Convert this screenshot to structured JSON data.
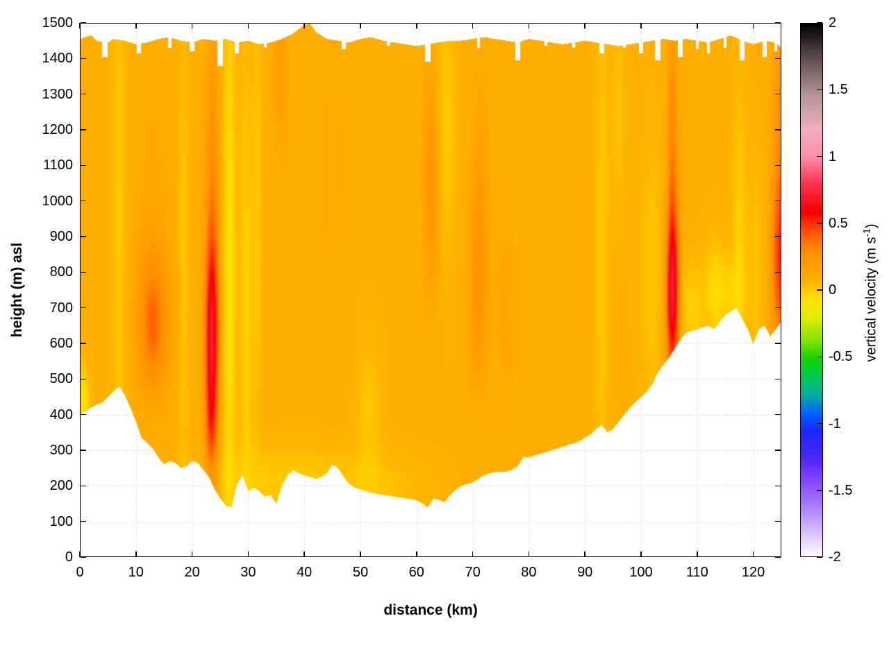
{
  "figure": {
    "background": "#ffffff"
  },
  "chart_data": {
    "type": "heatmap",
    "title": "",
    "xlabel": "distance (km)",
    "ylabel": "height (m) asl",
    "xlim": [
      0,
      125
    ],
    "ylim": [
      0,
      1500
    ],
    "xticks": [
      0,
      10,
      20,
      30,
      40,
      50,
      60,
      70,
      80,
      90,
      100,
      110,
      120
    ],
    "yticks": [
      0,
      100,
      200,
      300,
      400,
      500,
      600,
      700,
      800,
      900,
      1000,
      1100,
      1200,
      1300,
      1400,
      1500
    ],
    "grid": {
      "style": "dotted",
      "color": "#b8b8b8"
    },
    "colorbar": {
      "label_main": "vertical velocity (m s",
      "label_sup": "-1",
      "label_close": ")",
      "range": [
        -2,
        2
      ],
      "ticks": [
        -2,
        -1.5,
        -1,
        -0.5,
        0,
        0.5,
        1,
        1.5,
        2
      ],
      "tick_labels": [
        "-2",
        "-1.5",
        "-1",
        "-0.5",
        "0",
        "0.5",
        "1",
        "1.5",
        "2"
      ],
      "stops": [
        [
          -2.0,
          "#ffffff"
        ],
        [
          -1.85,
          "#e3ccff"
        ],
        [
          -1.65,
          "#b388ff"
        ],
        [
          -1.45,
          "#8a4cff"
        ],
        [
          -1.25,
          "#4c24f5"
        ],
        [
          -1.05,
          "#1a2aff"
        ],
        [
          -0.92,
          "#0066ff"
        ],
        [
          -0.78,
          "#00b09a"
        ],
        [
          -0.62,
          "#00cc44"
        ],
        [
          -0.52,
          "#14d200"
        ],
        [
          -0.38,
          "#7fe400"
        ],
        [
          -0.22,
          "#d8ef00"
        ],
        [
          -0.08,
          "#ffe400"
        ],
        [
          0.08,
          "#ffb000"
        ],
        [
          0.3,
          "#ff8c00"
        ],
        [
          0.45,
          "#ff4d00"
        ],
        [
          0.58,
          "#f50000"
        ],
        [
          0.8,
          "#ff3355"
        ],
        [
          1.0,
          "#ff90ac"
        ],
        [
          1.2,
          "#f2aebe"
        ],
        [
          1.45,
          "#b89898"
        ],
        [
          1.7,
          "#6b5858"
        ],
        [
          2.0,
          "#000000"
        ]
      ]
    },
    "field": {
      "base": 0.09,
      "terrain": [
        [
          0,
          400
        ],
        [
          2,
          420
        ],
        [
          4,
          435
        ],
        [
          6,
          465
        ],
        [
          7,
          480
        ],
        [
          8,
          455
        ],
        [
          9,
          420
        ],
        [
          10,
          380
        ],
        [
          11,
          335
        ],
        [
          12,
          320
        ],
        [
          13,
          305
        ],
        [
          14,
          280
        ],
        [
          15,
          260
        ],
        [
          16,
          270
        ],
        [
          17,
          265
        ],
        [
          18,
          250
        ],
        [
          19,
          255
        ],
        [
          20,
          270
        ],
        [
          21,
          265
        ],
        [
          22,
          245
        ],
        [
          23,
          225
        ],
        [
          24,
          190
        ],
        [
          25,
          165
        ],
        [
          26,
          145
        ],
        [
          27,
          140
        ],
        [
          28,
          205
        ],
        [
          29,
          230
        ],
        [
          30,
          185
        ],
        [
          31,
          195
        ],
        [
          32,
          185
        ],
        [
          33,
          170
        ],
        [
          34,
          175
        ],
        [
          35,
          150
        ],
        [
          36,
          200
        ],
        [
          37,
          230
        ],
        [
          38,
          245
        ],
        [
          39,
          235
        ],
        [
          40,
          230
        ],
        [
          41,
          225
        ],
        [
          42,
          220
        ],
        [
          43,
          225
        ],
        [
          44,
          235
        ],
        [
          45,
          260
        ],
        [
          46,
          250
        ],
        [
          47,
          225
        ],
        [
          48,
          205
        ],
        [
          49,
          195
        ],
        [
          50,
          190
        ],
        [
          51,
          185
        ],
        [
          52,
          180
        ],
        [
          54,
          175
        ],
        [
          56,
          170
        ],
        [
          58,
          165
        ],
        [
          60,
          160
        ],
        [
          61,
          150
        ],
        [
          62,
          140
        ],
        [
          63,
          165
        ],
        [
          64,
          160
        ],
        [
          65,
          155
        ],
        [
          66,
          175
        ],
        [
          67,
          190
        ],
        [
          68,
          200
        ],
        [
          69,
          205
        ],
        [
          70,
          210
        ],
        [
          71,
          220
        ],
        [
          72,
          230
        ],
        [
          73,
          235
        ],
        [
          74,
          240
        ],
        [
          75,
          240
        ],
        [
          76,
          240
        ],
        [
          77,
          245
        ],
        [
          78,
          255
        ],
        [
          79,
          280
        ],
        [
          80,
          280
        ],
        [
          81,
          285
        ],
        [
          82,
          290
        ],
        [
          83,
          295
        ],
        [
          84,
          300
        ],
        [
          85,
          305
        ],
        [
          86,
          310
        ],
        [
          87,
          315
        ],
        [
          88,
          320
        ],
        [
          89,
          325
        ],
        [
          90,
          335
        ],
        [
          91,
          345
        ],
        [
          92,
          360
        ],
        [
          93,
          370
        ],
        [
          94,
          350
        ],
        [
          95,
          360
        ],
        [
          96,
          380
        ],
        [
          97,
          400
        ],
        [
          98,
          420
        ],
        [
          99,
          435
        ],
        [
          100,
          450
        ],
        [
          101,
          465
        ],
        [
          102,
          485
        ],
        [
          103,
          520
        ],
        [
          104,
          540
        ],
        [
          105,
          560
        ],
        [
          106,
          585
        ],
        [
          107,
          610
        ],
        [
          108,
          630
        ],
        [
          109,
          635
        ],
        [
          110,
          640
        ],
        [
          111,
          645
        ],
        [
          112,
          650
        ],
        [
          113,
          640
        ],
        [
          114,
          660
        ],
        [
          115,
          680
        ],
        [
          116,
          690
        ],
        [
          117,
          700
        ],
        [
          118,
          670
        ],
        [
          119,
          640
        ],
        [
          120,
          600
        ],
        [
          121,
          640
        ],
        [
          122,
          650
        ],
        [
          123,
          620
        ],
        [
          124,
          640
        ],
        [
          125,
          660
        ]
      ],
      "top": [
        [
          0,
          1455
        ],
        [
          2,
          1465
        ],
        [
          3,
          1450
        ],
        [
          5,
          1445
        ],
        [
          6,
          1455
        ],
        [
          8,
          1450
        ],
        [
          10,
          1440
        ],
        [
          12,
          1445
        ],
        [
          14,
          1455
        ],
        [
          16,
          1460
        ],
        [
          18,
          1450
        ],
        [
          20,
          1445
        ],
        [
          22,
          1455
        ],
        [
          24,
          1450
        ],
        [
          26,
          1455
        ],
        [
          28,
          1445
        ],
        [
          30,
          1450
        ],
        [
          32,
          1440
        ],
        [
          34,
          1445
        ],
        [
          36,
          1455
        ],
        [
          38,
          1470
        ],
        [
          40,
          1495
        ],
        [
          41,
          1500
        ],
        [
          42,
          1475
        ],
        [
          44,
          1455
        ],
        [
          46,
          1450
        ],
        [
          48,
          1445
        ],
        [
          50,
          1455
        ],
        [
          52,
          1460
        ],
        [
          54,
          1450
        ],
        [
          56,
          1445
        ],
        [
          58,
          1440
        ],
        [
          60,
          1435
        ],
        [
          62,
          1440
        ],
        [
          64,
          1445
        ],
        [
          66,
          1450
        ],
        [
          68,
          1450
        ],
        [
          70,
          1455
        ],
        [
          72,
          1460
        ],
        [
          74,
          1455
        ],
        [
          76,
          1450
        ],
        [
          78,
          1445
        ],
        [
          80,
          1455
        ],
        [
          82,
          1450
        ],
        [
          84,
          1445
        ],
        [
          86,
          1440
        ],
        [
          88,
          1445
        ],
        [
          90,
          1450
        ],
        [
          92,
          1445
        ],
        [
          94,
          1440
        ],
        [
          96,
          1435
        ],
        [
          98,
          1440
        ],
        [
          100,
          1445
        ],
        [
          102,
          1450
        ],
        [
          104,
          1455
        ],
        [
          106,
          1450
        ],
        [
          108,
          1455
        ],
        [
          110,
          1450
        ],
        [
          112,
          1445
        ],
        [
          114,
          1455
        ],
        [
          116,
          1465
        ],
        [
          118,
          1450
        ],
        [
          120,
          1440
        ],
        [
          122,
          1450
        ],
        [
          124,
          1445
        ],
        [
          125,
          1430
        ]
      ],
      "top_gaps": [
        [
          4.5,
          1.0,
          1405
        ],
        [
          10.5,
          0.8,
          1415
        ],
        [
          16,
          0.6,
          1430
        ],
        [
          20,
          0.8,
          1420
        ],
        [
          25,
          1.1,
          1380
        ],
        [
          28,
          0.7,
          1415
        ],
        [
          33,
          0.5,
          1430
        ],
        [
          47,
          0.8,
          1425
        ],
        [
          55,
          0.6,
          1435
        ],
        [
          62,
          1.0,
          1390
        ],
        [
          71,
          0.5,
          1430
        ],
        [
          78,
          0.9,
          1395
        ],
        [
          83,
          0.5,
          1435
        ],
        [
          88,
          0.6,
          1430
        ],
        [
          93,
          0.9,
          1415
        ],
        [
          97,
          0.5,
          1430
        ],
        [
          100,
          0.8,
          1415
        ],
        [
          103,
          1.0,
          1395
        ],
        [
          107,
          0.8,
          1405
        ],
        [
          110,
          0.5,
          1425
        ],
        [
          112,
          0.6,
          1415
        ],
        [
          115,
          0.5,
          1430
        ],
        [
          118,
          0.9,
          1395
        ],
        [
          122,
          0.8,
          1405
        ],
        [
          124,
          0.5,
          1420
        ]
      ],
      "streaks": [
        [
          0.6,
          0.8,
          440,
          70,
          -0.16
        ],
        [
          7,
          0.9,
          900,
          600,
          -0.09
        ],
        [
          13,
          2.4,
          660,
          160,
          0.17
        ],
        [
          13,
          1.2,
          650,
          100,
          0.12
        ],
        [
          13,
          2.2,
          1050,
          300,
          0.05
        ],
        [
          18.5,
          0.7,
          800,
          500,
          -0.08
        ],
        [
          23.5,
          0.9,
          620,
          190,
          0.48
        ],
        [
          23.6,
          0.9,
          1000,
          330,
          0.2
        ],
        [
          23.4,
          0.8,
          360,
          120,
          0.22
        ],
        [
          26.6,
          0.8,
          800,
          600,
          -0.17
        ],
        [
          29.6,
          0.8,
          700,
          500,
          -0.11
        ],
        [
          31.6,
          0.6,
          950,
          450,
          -0.08
        ],
        [
          35.8,
          0.9,
          1360,
          170,
          0.1
        ],
        [
          37,
          9,
          215,
          70,
          -0.09
        ],
        [
          45,
          1.1,
          1100,
          300,
          0.05
        ],
        [
          51.5,
          1.6,
          400,
          150,
          -0.08
        ],
        [
          54,
          6,
          200,
          60,
          -0.05
        ],
        [
          62.6,
          1.0,
          1060,
          220,
          0.17
        ],
        [
          65.2,
          1.3,
          1200,
          260,
          -0.09
        ],
        [
          71,
          1.3,
          760,
          200,
          0.15
        ],
        [
          71.4,
          1.0,
          1100,
          220,
          0.07
        ],
        [
          76,
          1.0,
          700,
          220,
          0.07
        ],
        [
          93,
          0.9,
          850,
          500,
          -0.09
        ],
        [
          96,
          0.9,
          1250,
          200,
          -0.07
        ],
        [
          102,
          1.6,
          800,
          300,
          -0.07
        ],
        [
          105.6,
          0.85,
          730,
          170,
          0.55
        ],
        [
          105.6,
          0.7,
          1120,
          280,
          0.22
        ],
        [
          109,
          1.5,
          700,
          90,
          -0.11
        ],
        [
          113,
          1.2,
          750,
          110,
          -0.1
        ],
        [
          115.5,
          2.0,
          740,
          80,
          -0.1
        ],
        [
          117.6,
          0.9,
          900,
          280,
          -0.11
        ],
        [
          120.5,
          0.8,
          820,
          200,
          -0.07
        ],
        [
          124.7,
          1.0,
          820,
          160,
          0.32
        ],
        [
          124.7,
          0.9,
          1150,
          300,
          0.17
        ]
      ]
    }
  }
}
